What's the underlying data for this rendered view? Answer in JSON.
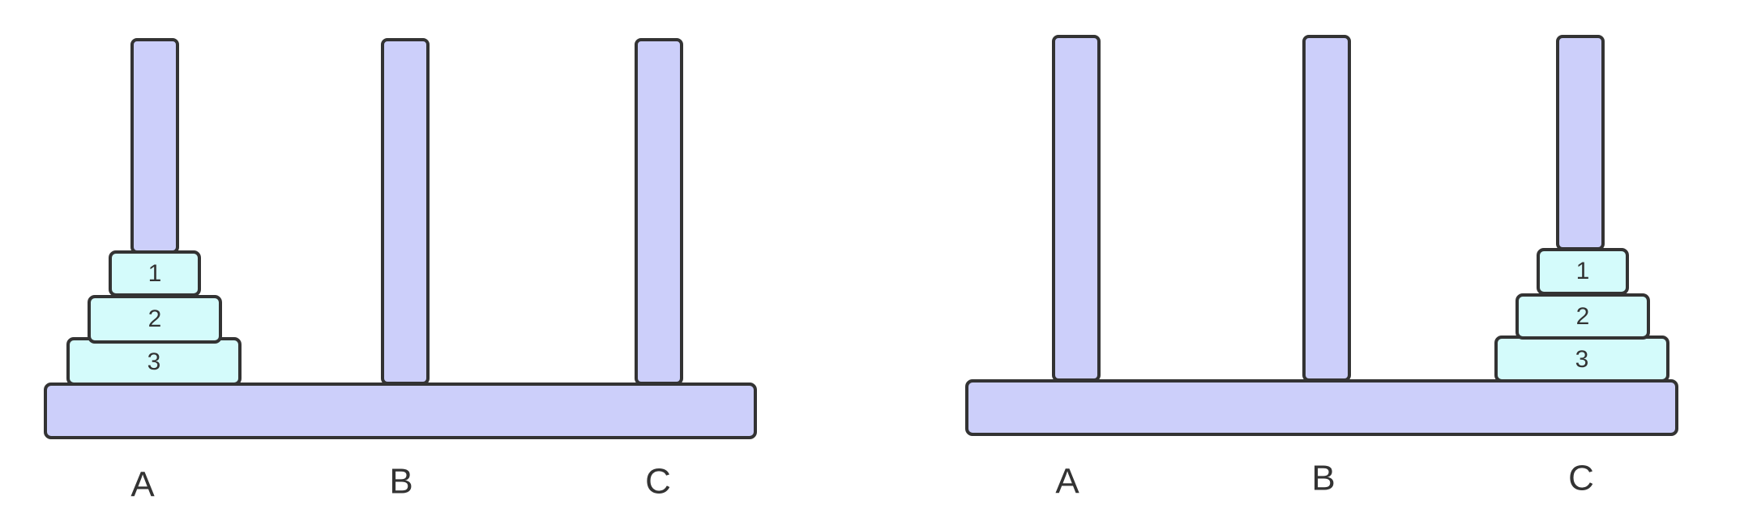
{
  "colors": {
    "stroke": "#333333",
    "peg_fill": "#cccffa",
    "base_fill": "#cccffa",
    "disk_fill": "#d4fbfb",
    "label": "#333333"
  },
  "panels": [
    {
      "state": "initial",
      "pegs": [
        {
          "label": "A",
          "disks": [
            "3",
            "2",
            "1"
          ]
        },
        {
          "label": "B",
          "disks": []
        },
        {
          "label": "C",
          "disks": []
        }
      ]
    },
    {
      "state": "final",
      "pegs": [
        {
          "label": "A",
          "disks": []
        },
        {
          "label": "B",
          "disks": []
        },
        {
          "label": "C",
          "disks": [
            "3",
            "2",
            "1"
          ]
        }
      ]
    }
  ]
}
